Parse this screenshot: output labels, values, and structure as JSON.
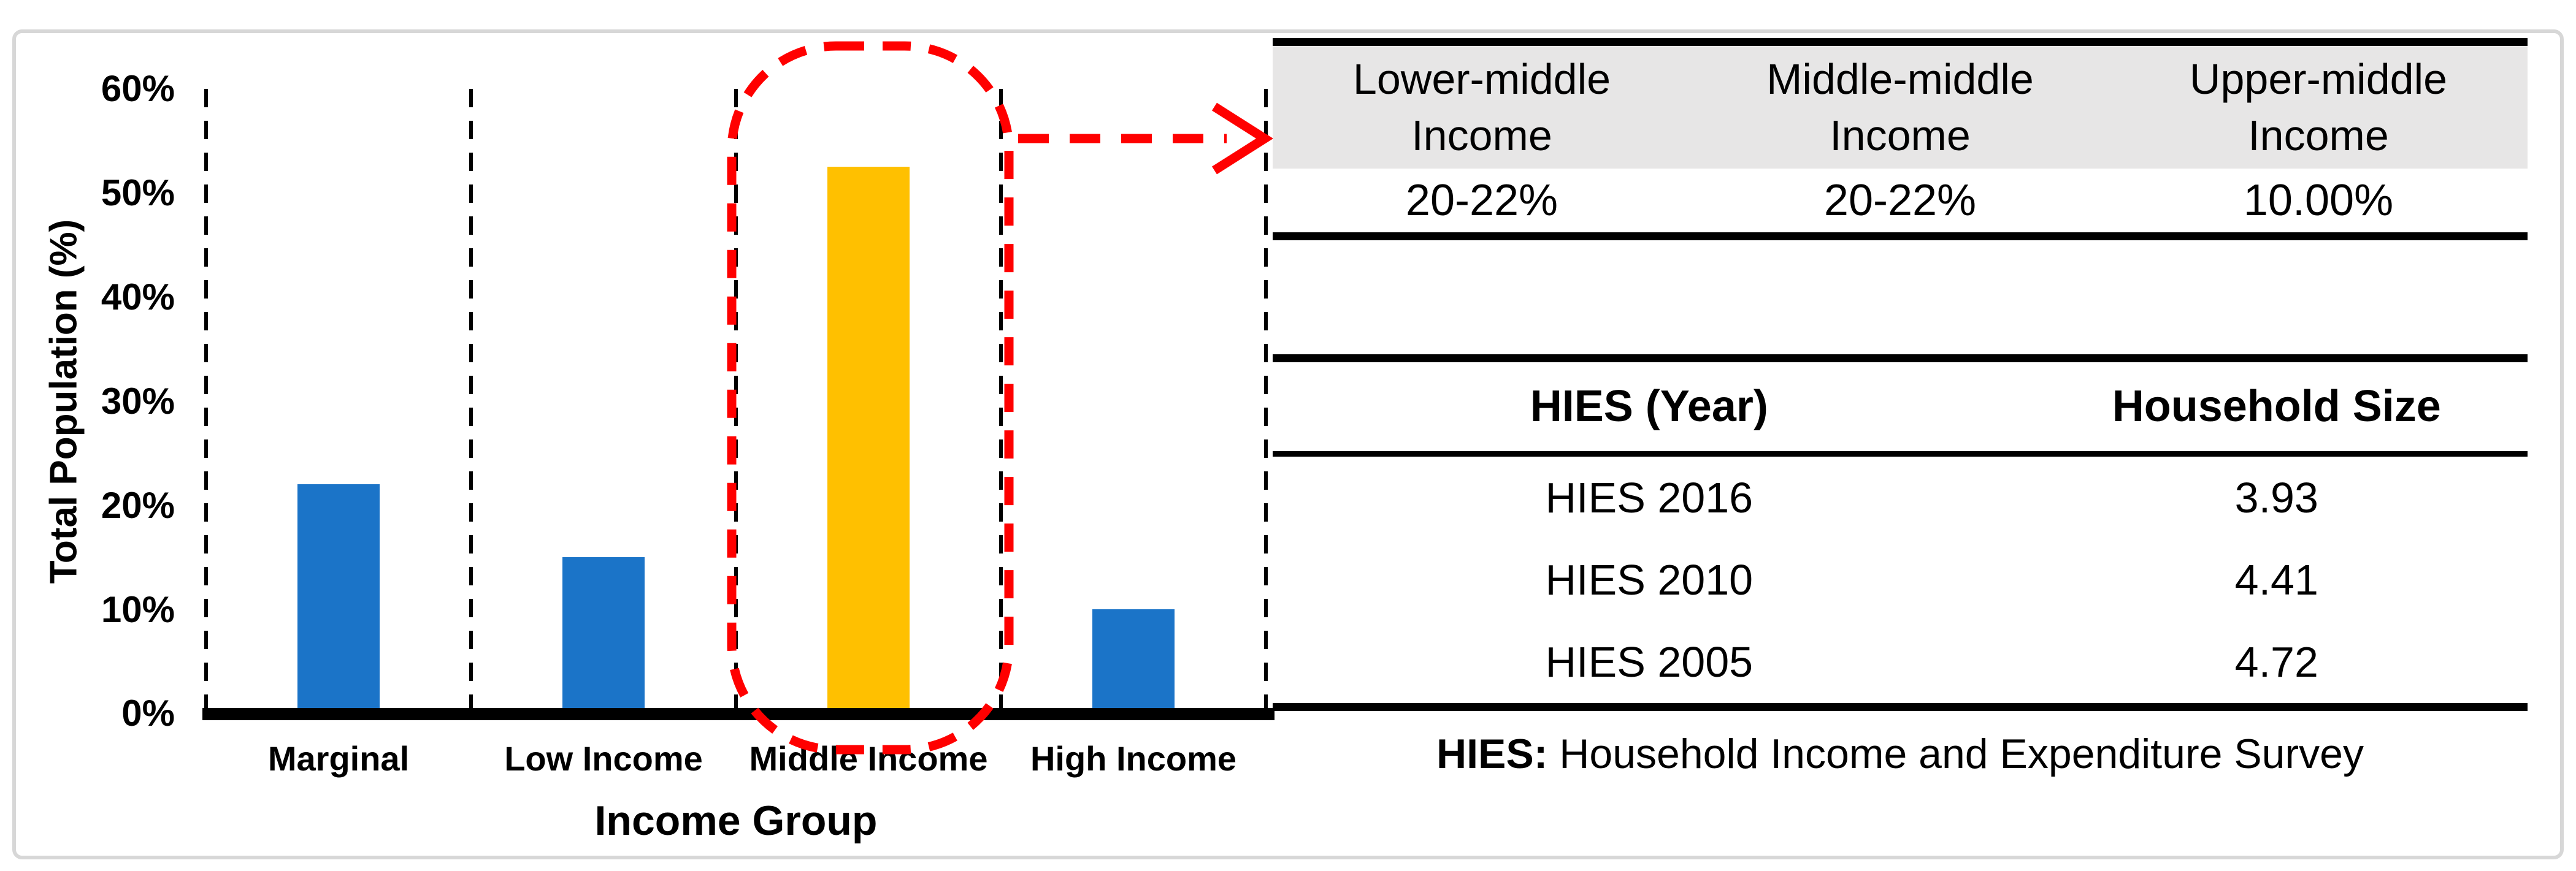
{
  "figure": {
    "border_color": "#D7D7D7",
    "background": "#FFFFFF"
  },
  "chart": {
    "y_axis": {
      "title": "Total Population (%)",
      "tick_labels": [
        "60%",
        "50%",
        "40%",
        "30%",
        "20%",
        "10%",
        "0%"
      ]
    },
    "x_axis": {
      "title": "Income Group",
      "category_labels": [
        "Marginal",
        "Low Income",
        "Middle Income",
        "High Income"
      ]
    },
    "bars": [
      {
        "label": "Marginal",
        "value_percent": 22,
        "color": "#1B74C8"
      },
      {
        "label": "Low Income",
        "value_percent": 15,
        "color": "#1B74C8"
      },
      {
        "label": "Middle Income",
        "value_percent": 52.5,
        "color": "#FFC000"
      },
      {
        "label": "High Income",
        "value_percent": 10,
        "color": "#1B74C8"
      }
    ],
    "annotation": {
      "type": "dashed-rounded-rect-with-arrow",
      "highlighted_category": "Middle Income",
      "color": "#FF0000"
    }
  },
  "chart_data": [
    {
      "type": "bar",
      "categories": [
        "Marginal",
        "Low Income",
        "Middle Income",
        "High Income"
      ],
      "values": [
        22,
        15,
        52.5,
        10
      ],
      "title": "",
      "xlabel": "Income Group",
      "ylabel": "Total Population (%)",
      "ylim": [
        0,
        60
      ],
      "yticks": [
        0,
        10,
        20,
        30,
        40,
        50,
        60
      ],
      "ytick_format": "percent",
      "grid": false,
      "legend": false,
      "bar_colors": [
        "#1B74C8",
        "#1B74C8",
        "#FFC000",
        "#1B74C8"
      ],
      "annotation": "Middle Income bar enclosed in red dashed rounded rectangle with dashed arrow pointing to breakdown table"
    },
    {
      "type": "table",
      "title": "Middle income breakdown",
      "columns": [
        "Lower-middle Income",
        "Middle-middle Income",
        "Upper-middle Income"
      ],
      "rows": [
        [
          "20-22%",
          "20-22%",
          "10.00%"
        ]
      ]
    },
    {
      "type": "table",
      "columns": [
        "HIES (Year)",
        "Household Size"
      ],
      "rows": [
        [
          "HIES 2016",
          "3.93"
        ],
        [
          "HIES 2010",
          "4.41"
        ],
        [
          "HIES 2005",
          "4.72"
        ]
      ],
      "footnote": "HIES: Household Income and Expenditure Survey"
    }
  ],
  "breakdown_table": {
    "header_bg": "#E7E6E6",
    "columns": [
      {
        "line1": "Lower-middle",
        "line2": "Income"
      },
      {
        "line1": "Middle-middle",
        "line2": "Income"
      },
      {
        "line1": "Upper-middle",
        "line2": "Income"
      }
    ],
    "values": [
      "20-22%",
      "20-22%",
      "10.00%"
    ]
  },
  "hies_table": {
    "header": {
      "col1": "HIES (Year)",
      "col2": "Household Size"
    },
    "rows": [
      {
        "year": "HIES 2016",
        "size": "3.93"
      },
      {
        "year": "HIES 2010",
        "size": "4.41"
      },
      {
        "year": "HIES 2005",
        "size": "4.72"
      }
    ]
  },
  "footnote": {
    "term": "HIES:",
    "definition": " Household Income and Expenditure Survey"
  }
}
